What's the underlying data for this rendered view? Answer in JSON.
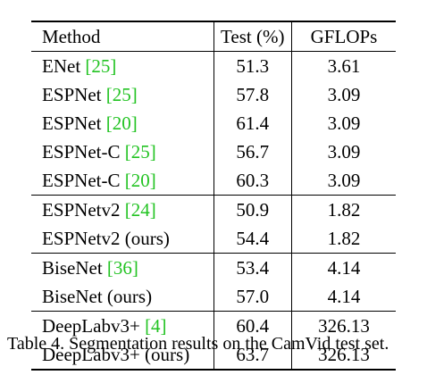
{
  "table": {
    "headers": [
      "Method",
      "Test (%)",
      "GFLOPs"
    ],
    "rows": [
      {
        "method": "ENet",
        "ref": "[25]",
        "suffix": "",
        "test": "51.3",
        "gflops": "3.61",
        "bold": false,
        "sep": false
      },
      {
        "method": "ESPNet",
        "ref": "[25]",
        "suffix": "",
        "test": "57.8",
        "gflops": "3.09",
        "bold": false,
        "sep": false
      },
      {
        "method": "ESPNet",
        "ref": "[20]",
        "suffix": "",
        "test": "61.4",
        "gflops": "3.09",
        "bold": false,
        "sep": false
      },
      {
        "method": "ESPNet-C",
        "ref": "[25]",
        "suffix": "",
        "test": "56.7",
        "gflops": "3.09",
        "bold": false,
        "sep": false
      },
      {
        "method": "ESPNet-C",
        "ref": "[20]",
        "suffix": "",
        "test": "60.3",
        "gflops": "3.09",
        "bold": false,
        "sep": false
      },
      {
        "method": "ESPNetv2",
        "ref": "[24]",
        "suffix": "",
        "test": "50.9",
        "gflops": "1.82",
        "bold": false,
        "sep": true
      },
      {
        "method": "ESPNetv2 (ours)",
        "ref": "",
        "suffix": "",
        "test": "54.4",
        "gflops": "1.82",
        "bold": true,
        "sep": false
      },
      {
        "method": "BiseNet",
        "ref": "[36]",
        "suffix": "",
        "test": "53.4",
        "gflops": "4.14",
        "bold": false,
        "sep": true
      },
      {
        "method": "BiseNet (ours)",
        "ref": "",
        "suffix": "",
        "test": "57.0",
        "gflops": "4.14",
        "bold": true,
        "sep": false
      },
      {
        "method": "DeepLabv3+",
        "ref": "[4]",
        "suffix": "",
        "test": "60.4",
        "gflops": "326.13",
        "bold": false,
        "sep": true
      },
      {
        "method": "DeepLabv3+ (ours)",
        "ref": "",
        "suffix": "",
        "test": "63.7",
        "gflops": "326.13",
        "bold": true,
        "sep": false
      }
    ]
  },
  "caption": "Table 4. Segmentation results on the CamVid test set.",
  "colors": {
    "citation": "#22c322",
    "text": "#000000"
  }
}
